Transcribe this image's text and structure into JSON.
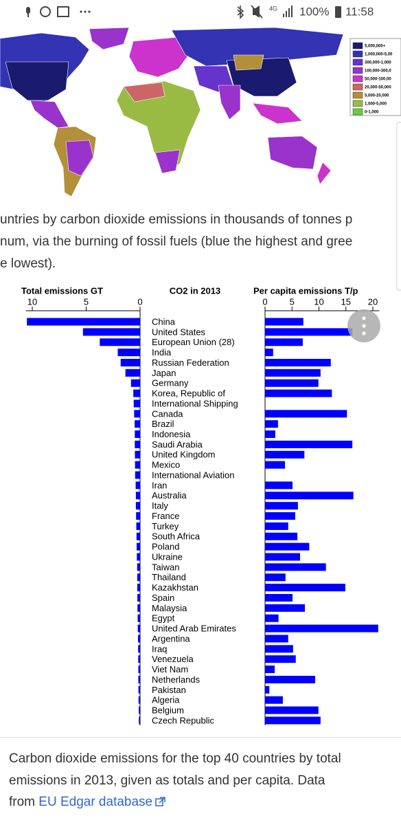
{
  "status_bar": {
    "network": "4G",
    "battery": "100%",
    "time": "11:58"
  },
  "map": {
    "legend": [
      {
        "label": "5,000,000+",
        "color": "#1a1a6e"
      },
      {
        "label": "1,000,000-5,00",
        "color": "#3333b3"
      },
      {
        "label": "300,000-1,000",
        "color": "#6633cc"
      },
      {
        "label": "100,000-300,0",
        "color": "#9933cc"
      },
      {
        "label": "50,000-100,00",
        "color": "#cc33cc"
      },
      {
        "label": "20,000-50,000",
        "color": "#cc6666"
      },
      {
        "label": "5,000-20,000",
        "color": "#b38f3a"
      },
      {
        "label": "1,000-5,000",
        "color": "#99bb44"
      },
      {
        "label": "0-1,000",
        "color": "#66cc44"
      }
    ]
  },
  "map_caption": [
    "untries by carbon dioxide emissions in thousands of tonnes p",
    "num, via the burning of fossil fuels (blue the highest and gree",
    "e lowest)."
  ],
  "chart_data": {
    "type": "bar",
    "orientation": "horizontal",
    "title": "CO2 in 2013",
    "categories": [
      "China",
      "United States",
      "European Union (28)",
      "India",
      "Russian Federation",
      "Japan",
      "Germany",
      "Korea, Republic of",
      "International Shipping",
      "Canada",
      "Brazil",
      "Indonesia",
      "Saudi Arabia",
      "United Kingdom",
      "Mexico",
      "International Aviation",
      "Iran",
      "Australia",
      "Italy",
      "France",
      "Turkey",
      "South Africa",
      "Poland",
      "Ukraine",
      "Taiwan",
      "Thailand",
      "Kazakhstan",
      "Spain",
      "Malaysia",
      "Egypt",
      "United Arab Emirates",
      "Argentina",
      "Iraq",
      "Venezuela",
      "Viet Nam",
      "Netherlands",
      "Pakistan",
      "Algeria",
      "Belgium",
      "Czech Republic"
    ],
    "series": [
      {
        "name": "Total emissions GT",
        "color": "#0000ff",
        "axis": "x",
        "values": [
          10.5,
          5.3,
          3.74,
          2.07,
          1.8,
          1.36,
          0.84,
          0.63,
          0.59,
          0.55,
          0.5,
          0.49,
          0.49,
          0.48,
          0.47,
          0.46,
          0.41,
          0.39,
          0.39,
          0.37,
          0.35,
          0.33,
          0.32,
          0.3,
          0.27,
          0.26,
          0.26,
          0.25,
          0.24,
          0.22,
          0.21,
          0.19,
          0.18,
          0.17,
          0.16,
          0.16,
          0.15,
          0.14,
          0.12,
          0.11
        ]
      },
      {
        "name": "Per capita emissions T/p",
        "color": "#0000ff",
        "axis": "x2",
        "values": [
          7.1,
          16.2,
          7.0,
          1.5,
          12.2,
          10.3,
          9.9,
          12.4,
          null,
          15.2,
          2.4,
          1.9,
          16.2,
          7.3,
          3.7,
          null,
          5.1,
          16.4,
          6.1,
          5.6,
          4.3,
          6.0,
          8.2,
          6.5,
          11.3,
          3.8,
          14.9,
          5.1,
          7.4,
          2.5,
          21.0,
          4.3,
          5.2,
          5.7,
          1.8,
          9.3,
          0.8,
          3.3,
          9.9,
          10.3
        ]
      }
    ],
    "xlim": [
      10.6,
      0
    ],
    "xticks": [
      10,
      5,
      0
    ],
    "x2lim": [
      0,
      21.2
    ],
    "x2ticks": [
      0,
      5,
      10,
      15,
      20
    ]
  },
  "caption": {
    "lines": [
      "Carbon dioxide emissions for the top 40 countries by total",
      "emissions in 2013, given as totals and per capita. Data",
      "from"
    ],
    "link": "EU Edgar database"
  }
}
